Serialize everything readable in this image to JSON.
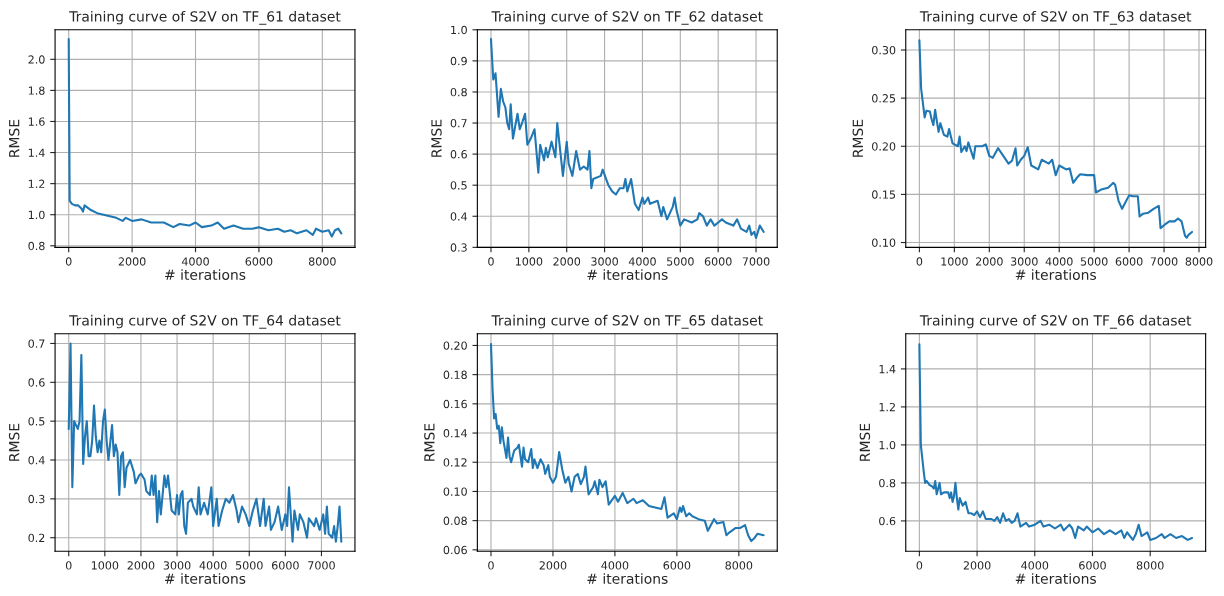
{
  "chart_data": [
    {
      "type": "line",
      "title": "Training curve of S2V on TF_61 dataset",
      "xlabel": "# iterations",
      "ylabel": "RMSE",
      "grid": true,
      "xlim": [
        -430,
        9030
      ],
      "ylim": [
        0.79,
        2.19
      ],
      "xticks": [
        0,
        2000,
        4000,
        6000,
        8000
      ],
      "yticks": [
        0.8,
        {
          "value": 1.0,
          "label": "1.0"
        },
        1.2,
        1.4,
        1.6,
        1.8,
        {
          "value": 2.0,
          "label": "2.0"
        }
      ],
      "series": [
        {
          "color": "#1f77b4",
          "x": [
            0,
            30,
            100,
            200,
            300,
            400,
            450,
            500,
            700,
            900,
            1100,
            1300,
            1500,
            1700,
            1800,
            2000,
            2300,
            2600,
            3000,
            3300,
            3500,
            3800,
            4000,
            4200,
            4500,
            4700,
            4900,
            5200,
            5500,
            5800,
            6000,
            6300,
            6600,
            6800,
            7000,
            7200,
            7500,
            7700,
            7800,
            8000,
            8200,
            8300,
            8400,
            8500,
            8600
          ],
          "values": [
            2.13,
            1.09,
            1.07,
            1.06,
            1.06,
            1.04,
            1.02,
            1.06,
            1.03,
            1.01,
            1.0,
            0.99,
            0.98,
            0.96,
            0.98,
            0.96,
            0.97,
            0.95,
            0.95,
            0.92,
            0.94,
            0.93,
            0.95,
            0.92,
            0.93,
            0.95,
            0.91,
            0.93,
            0.91,
            0.91,
            0.92,
            0.9,
            0.91,
            0.89,
            0.9,
            0.88,
            0.9,
            0.87,
            0.91,
            0.89,
            0.9,
            0.86,
            0.9,
            0.91,
            0.88
          ]
        }
      ]
    },
    {
      "type": "line",
      "title": "Training curve of S2V on TF_62 dataset",
      "xlabel": "# iterations",
      "ylabel": "RMSE",
      "grid": true,
      "xlim": [
        -360,
        7560
      ],
      "ylim": [
        0.3,
        1.0
      ],
      "xticks": [
        0,
        1000,
        2000,
        3000,
        4000,
        5000,
        6000,
        7000
      ],
      "yticks": [
        0.3,
        0.4,
        0.5,
        0.6,
        0.7,
        0.8,
        0.9,
        {
          "value": 1.0,
          "label": "1.0"
        }
      ],
      "series": [
        {
          "color": "#1f77b4",
          "x": [
            0,
            60,
            120,
            200,
            260,
            320,
            380,
            430,
            480,
            520,
            580,
            700,
            760,
            820,
            900,
            960,
            1050,
            1150,
            1250,
            1300,
            1400,
            1450,
            1500,
            1600,
            1700,
            1750,
            1900,
            2000,
            2050,
            2150,
            2250,
            2350,
            2450,
            2550,
            2600,
            2650,
            2700,
            2900,
            2950,
            3100,
            3200,
            3300,
            3400,
            3500,
            3550,
            3600,
            3700,
            3800,
            3900,
            4000,
            4050,
            4150,
            4200,
            4400,
            4500,
            4550,
            4650,
            4800,
            4850,
            4900,
            5000,
            5100,
            5300,
            5450,
            5500,
            5600,
            5700,
            5800,
            5900,
            6000,
            6100,
            6200,
            6400,
            6500,
            6600,
            6750,
            6820,
            6880,
            6950,
            7000,
            7100,
            7200
          ],
          "values": [
            0.97,
            0.84,
            0.86,
            0.72,
            0.81,
            0.77,
            0.75,
            0.7,
            0.68,
            0.76,
            0.65,
            0.73,
            0.68,
            0.7,
            0.73,
            0.63,
            0.65,
            0.68,
            0.54,
            0.63,
            0.58,
            0.62,
            0.59,
            0.64,
            0.59,
            0.7,
            0.53,
            0.64,
            0.57,
            0.53,
            0.61,
            0.55,
            0.56,
            0.55,
            0.61,
            0.49,
            0.52,
            0.53,
            0.55,
            0.5,
            0.48,
            0.47,
            0.49,
            0.49,
            0.52,
            0.48,
            0.52,
            0.44,
            0.42,
            0.46,
            0.44,
            0.46,
            0.44,
            0.45,
            0.4,
            0.43,
            0.39,
            0.43,
            0.46,
            0.42,
            0.37,
            0.39,
            0.38,
            0.39,
            0.41,
            0.4,
            0.37,
            0.39,
            0.37,
            0.38,
            0.39,
            0.38,
            0.37,
            0.39,
            0.36,
            0.35,
            0.37,
            0.34,
            0.35,
            0.33,
            0.37,
            0.35
          ]
        }
      ]
    },
    {
      "type": "line",
      "title": "Training curve of S2V on TF_63 dataset",
      "xlabel": "# iterations",
      "ylabel": "RMSE",
      "grid": true,
      "xlim": [
        -390,
        8190
      ],
      "ylim": [
        0.095,
        0.321
      ],
      "xticks": [
        0,
        1000,
        2000,
        3000,
        4000,
        5000,
        6000,
        7000,
        8000
      ],
      "yticks": [
        {
          "value": 0.1,
          "label": "0.10"
        },
        0.15,
        {
          "value": 0.2,
          "label": "0.20"
        },
        0.25,
        {
          "value": 0.3,
          "label": "0.30"
        }
      ],
      "series": [
        {
          "color": "#1f77b4",
          "x": [
            0,
            50,
            100,
            150,
            200,
            300,
            350,
            400,
            450,
            500,
            550,
            600,
            700,
            800,
            850,
            950,
            1100,
            1150,
            1200,
            1300,
            1350,
            1400,
            1550,
            1600,
            1800,
            1900,
            2000,
            2100,
            2250,
            2400,
            2550,
            2650,
            2750,
            2800,
            2900,
            3000,
            3100,
            3200,
            3400,
            3500,
            3700,
            3800,
            3900,
            4000,
            4200,
            4300,
            4400,
            4500,
            4600,
            4800,
            5000,
            5050,
            5200,
            5400,
            5550,
            5600,
            5700,
            5800,
            5900,
            6000,
            6100,
            6250,
            6300,
            6400,
            6550,
            6700,
            6850,
            6900,
            7000,
            7150,
            7300,
            7400,
            7500,
            7600,
            7650,
            7700,
            7800
          ],
          "values": [
            0.31,
            0.26,
            0.245,
            0.23,
            0.237,
            0.236,
            0.228,
            0.222,
            0.238,
            0.226,
            0.215,
            0.224,
            0.212,
            0.21,
            0.218,
            0.203,
            0.2,
            0.21,
            0.194,
            0.2,
            0.195,
            0.204,
            0.187,
            0.2,
            0.2,
            0.202,
            0.19,
            0.188,
            0.198,
            0.19,
            0.182,
            0.185,
            0.198,
            0.18,
            0.186,
            0.19,
            0.199,
            0.18,
            0.176,
            0.186,
            0.182,
            0.186,
            0.17,
            0.18,
            0.176,
            0.177,
            0.162,
            0.167,
            0.171,
            0.17,
            0.17,
            0.152,
            0.155,
            0.157,
            0.162,
            0.16,
            0.143,
            0.135,
            0.142,
            0.149,
            0.148,
            0.148,
            0.127,
            0.13,
            0.131,
            0.135,
            0.138,
            0.115,
            0.118,
            0.122,
            0.122,
            0.125,
            0.122,
            0.107,
            0.105,
            0.108,
            0.111
          ]
        }
      ]
    },
    {
      "type": "line",
      "title": "Training curve of S2V on TF_64 dataset",
      "xlabel": "# iterations",
      "ylabel": "RMSE",
      "grid": true,
      "xlim": [
        -378,
        7928
      ],
      "ylim": [
        0.165,
        0.725
      ],
      "xticks": [
        0,
        1000,
        2000,
        3000,
        4000,
        5000,
        6000,
        7000
      ],
      "yticks": [
        0.2,
        0.3,
        0.4,
        0.5,
        0.6,
        0.7
      ],
      "series": [
        {
          "color": "#1f77b4",
          "x": [
            0,
            50,
            100,
            150,
            250,
            300,
            350,
            400,
            450,
            500,
            550,
            600,
            650,
            700,
            750,
            800,
            850,
            900,
            950,
            1000,
            1050,
            1100,
            1200,
            1250,
            1300,
            1350,
            1400,
            1450,
            1500,
            1550,
            1600,
            1700,
            1800,
            1850,
            1950,
            2000,
            2100,
            2150,
            2250,
            2300,
            2350,
            2400,
            2450,
            2500,
            2550,
            2650,
            2700,
            2750,
            2850,
            2950,
            3000,
            3050,
            3100,
            3150,
            3200,
            3250,
            3300,
            3400,
            3450,
            3550,
            3600,
            3650,
            3750,
            3850,
            3950,
            4000,
            4100,
            4150,
            4250,
            4350,
            4450,
            4550,
            4650,
            4700,
            4800,
            4900,
            5000,
            5100,
            5200,
            5300,
            5400,
            5450,
            5550,
            5600,
            5700,
            5800,
            5900,
            6000,
            6050,
            6100,
            6200,
            6250,
            6350,
            6400,
            6500,
            6600,
            6650,
            6800,
            6850,
            6950,
            7050,
            7100,
            7150,
            7200,
            7300,
            7350,
            7400,
            7450,
            7500,
            7550
          ],
          "values": [
            0.48,
            0.7,
            0.33,
            0.5,
            0.48,
            0.5,
            0.67,
            0.39,
            0.46,
            0.5,
            0.41,
            0.41,
            0.45,
            0.54,
            0.46,
            0.42,
            0.45,
            0.42,
            0.5,
            0.53,
            0.45,
            0.4,
            0.49,
            0.41,
            0.44,
            0.42,
            0.31,
            0.41,
            0.42,
            0.33,
            0.38,
            0.4,
            0.37,
            0.34,
            0.36,
            0.365,
            0.35,
            0.32,
            0.31,
            0.36,
            0.31,
            0.36,
            0.24,
            0.32,
            0.26,
            0.36,
            0.33,
            0.36,
            0.27,
            0.26,
            0.31,
            0.26,
            0.31,
            0.32,
            0.23,
            0.21,
            0.29,
            0.3,
            0.28,
            0.26,
            0.33,
            0.26,
            0.29,
            0.26,
            0.33,
            0.23,
            0.3,
            0.23,
            0.27,
            0.3,
            0.29,
            0.31,
            0.27,
            0.24,
            0.28,
            0.26,
            0.23,
            0.27,
            0.3,
            0.23,
            0.3,
            0.23,
            0.28,
            0.22,
            0.24,
            0.28,
            0.22,
            0.26,
            0.23,
            0.33,
            0.19,
            0.27,
            0.22,
            0.26,
            0.24,
            0.2,
            0.25,
            0.23,
            0.25,
            0.22,
            0.26,
            0.21,
            0.28,
            0.21,
            0.2,
            0.23,
            0.19,
            0.23,
            0.28,
            0.19
          ]
        }
      ]
    },
    {
      "type": "line",
      "title": "Training curve of S2V on TF_65 dataset",
      "xlabel": "# iterations",
      "ylabel": "RMSE",
      "grid": true,
      "xlim": [
        -440,
        9240
      ],
      "ylim": [
        0.059,
        0.208
      ],
      "xticks": [
        0,
        2000,
        4000,
        6000,
        8000
      ],
      "yticks": [
        0.06,
        0.08,
        {
          "value": 0.1,
          "label": "0.10"
        },
        0.12,
        0.14,
        0.16,
        0.18,
        {
          "value": 0.2,
          "label": "0.20"
        }
      ],
      "series": [
        {
          "color": "#1f77b4",
          "x": [
            0,
            50,
            100,
            150,
            200,
            250,
            300,
            350,
            400,
            500,
            550,
            600,
            650,
            750,
            850,
            900,
            1000,
            1050,
            1100,
            1200,
            1300,
            1350,
            1400,
            1500,
            1600,
            1700,
            1750,
            1850,
            1900,
            2000,
            2100,
            2200,
            2300,
            2400,
            2500,
            2600,
            2700,
            2800,
            2900,
            3000,
            3050,
            3150,
            3300,
            3350,
            3450,
            3500,
            3600,
            3700,
            3800,
            4000,
            4100,
            4250,
            4400,
            4600,
            4700,
            4900,
            5100,
            5300,
            5500,
            5600,
            5700,
            5900,
            6000,
            6100,
            6150,
            6200,
            6300,
            6400,
            6500,
            6700,
            6900,
            7000,
            7200,
            7300,
            7500,
            7600,
            7700,
            7900,
            8050,
            8200,
            8300,
            8400,
            8500,
            8600,
            8800
          ],
          "values": [
            0.201,
            0.17,
            0.15,
            0.153,
            0.143,
            0.145,
            0.133,
            0.144,
            0.135,
            0.123,
            0.137,
            0.124,
            0.12,
            0.128,
            0.13,
            0.132,
            0.117,
            0.13,
            0.122,
            0.12,
            0.129,
            0.116,
            0.122,
            0.116,
            0.122,
            0.118,
            0.112,
            0.118,
            0.11,
            0.106,
            0.11,
            0.127,
            0.115,
            0.106,
            0.11,
            0.1,
            0.11,
            0.112,
            0.105,
            0.11,
            0.117,
            0.098,
            0.103,
            0.107,
            0.098,
            0.108,
            0.103,
            0.107,
            0.091,
            0.097,
            0.093,
            0.099,
            0.092,
            0.095,
            0.092,
            0.094,
            0.09,
            0.089,
            0.088,
            0.096,
            0.082,
            0.085,
            0.081,
            0.089,
            0.086,
            0.09,
            0.083,
            0.085,
            0.083,
            0.081,
            0.08,
            0.073,
            0.081,
            0.078,
            0.079,
            0.07,
            0.072,
            0.075,
            0.075,
            0.077,
            0.07,
            0.066,
            0.068,
            0.071,
            0.07
          ]
        }
      ]
    },
    {
      "type": "line",
      "title": "Training curve of S2V on TF_66 dataset",
      "xlabel": "# iterations",
      "ylabel": "RMSE",
      "grid": true,
      "xlim": [
        -472,
        9922
      ],
      "ylim": [
        0.44,
        1.585
      ],
      "xticks": [
        0,
        2000,
        4000,
        6000,
        8000
      ],
      "yticks": [
        0.6,
        0.8,
        {
          "value": 1.0,
          "label": "1.0"
        },
        1.2,
        1.4
      ],
      "series": [
        {
          "color": "#1f77b4",
          "x": [
            0,
            50,
            100,
            150,
            200,
            250,
            350,
            450,
            500,
            550,
            600,
            700,
            750,
            850,
            1000,
            1050,
            1100,
            1150,
            1200,
            1250,
            1300,
            1350,
            1400,
            1500,
            1600,
            1700,
            1800,
            1900,
            2000,
            2100,
            2200,
            2300,
            2500,
            2600,
            2700,
            2800,
            2900,
            3000,
            3100,
            3200,
            3300,
            3400,
            3500,
            3700,
            3800,
            4000,
            4200,
            4300,
            4500,
            4700,
            4900,
            5000,
            5200,
            5300,
            5400,
            5500,
            5700,
            5800,
            6000,
            6200,
            6400,
            6600,
            6800,
            7000,
            7100,
            7200,
            7400,
            7500,
            7600,
            7700,
            7900,
            8000,
            8200,
            8400,
            8500,
            8700,
            8900,
            9100,
            9300,
            9450
          ],
          "values": [
            1.53,
            1.0,
            0.93,
            0.86,
            0.8,
            0.81,
            0.79,
            0.78,
            0.77,
            0.81,
            0.74,
            0.8,
            0.74,
            0.75,
            0.75,
            0.72,
            0.75,
            0.7,
            0.73,
            0.8,
            0.72,
            0.66,
            0.72,
            0.68,
            0.7,
            0.64,
            0.64,
            0.63,
            0.65,
            0.62,
            0.65,
            0.61,
            0.61,
            0.6,
            0.62,
            0.59,
            0.64,
            0.6,
            0.61,
            0.59,
            0.6,
            0.64,
            0.57,
            0.59,
            0.57,
            0.58,
            0.6,
            0.57,
            0.58,
            0.56,
            0.58,
            0.55,
            0.58,
            0.56,
            0.51,
            0.57,
            0.55,
            0.57,
            0.54,
            0.56,
            0.53,
            0.55,
            0.53,
            0.55,
            0.51,
            0.54,
            0.5,
            0.53,
            0.58,
            0.52,
            0.54,
            0.5,
            0.51,
            0.53,
            0.51,
            0.53,
            0.51,
            0.52,
            0.5,
            0.51
          ]
        }
      ]
    }
  ]
}
